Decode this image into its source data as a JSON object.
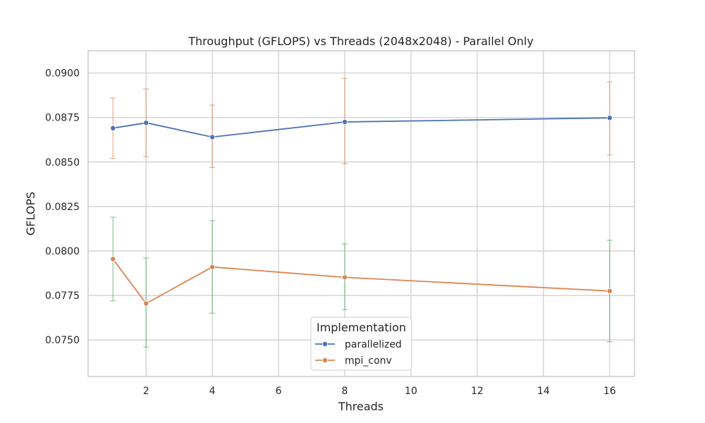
{
  "chart_data": {
    "type": "line",
    "title": "Throughput (GFLOPS) vs Threads (2048x2048) - Parallel Only",
    "xlabel": "Threads",
    "ylabel": "GFLOPS",
    "xlim": [
      0.25,
      16.75
    ],
    "ylim": [
      0.07295,
      0.09125
    ],
    "x_ticks": [
      2,
      4,
      6,
      8,
      10,
      12,
      14,
      16
    ],
    "x_tick_labels": [
      "2",
      "4",
      "6",
      "8",
      "10",
      "12",
      "14",
      "16"
    ],
    "y_ticks": [
      0.075,
      0.0775,
      0.08,
      0.0825,
      0.085,
      0.0875,
      0.09
    ],
    "y_tick_labels": [
      "0.0750",
      "0.0775",
      "0.0800",
      "0.0825",
      "0.0850",
      "0.0875",
      "0.0900"
    ],
    "grid": true,
    "legend": {
      "title": "Implementation",
      "placement": "bottom-center"
    },
    "series": [
      {
        "name": "parallelized",
        "color": "#4c72b0",
        "error_color": "#dd8452",
        "x": [
          1,
          2,
          4,
          8,
          16
        ],
        "y": [
          0.0869,
          0.0872,
          0.0864,
          0.08725,
          0.08748
        ],
        "err_low": [
          0.0852,
          0.0853,
          0.0847,
          0.0849,
          0.0854
        ],
        "err_high": [
          0.0886,
          0.0891,
          0.0882,
          0.0897,
          0.0895
        ]
      },
      {
        "name": "mpi_conv",
        "color": "#dd8452",
        "error_color": "#55a868",
        "x": [
          1,
          2,
          4,
          8,
          16
        ],
        "y": [
          0.07955,
          0.07705,
          0.0791,
          0.07852,
          0.07775
        ],
        "err_low": [
          0.0772,
          0.0746,
          0.0765,
          0.0767,
          0.0749
        ],
        "err_high": [
          0.0819,
          0.0796,
          0.0817,
          0.0804,
          0.0806
        ]
      }
    ]
  }
}
